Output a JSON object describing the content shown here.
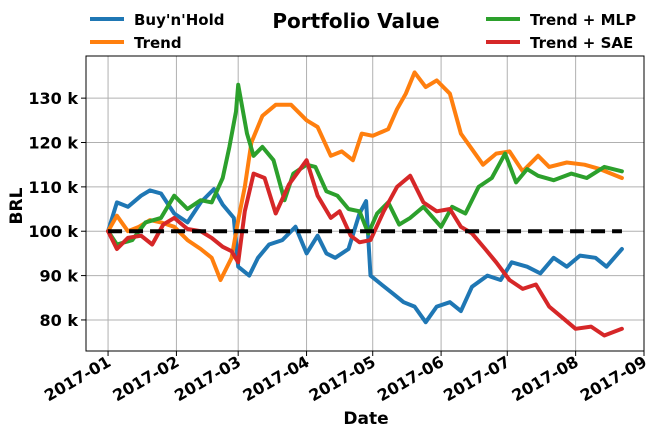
{
  "chart_data": {
    "type": "line",
    "title": "Portfolio Value",
    "xlabel": "Date",
    "ylabel": "BRL",
    "x_ticks": [
      {
        "date": "2017-01-01",
        "label": "2017-01"
      },
      {
        "date": "2017-02-01",
        "label": "2017-02"
      },
      {
        "date": "2017-03-01",
        "label": "2017-03"
      },
      {
        "date": "2017-04-01",
        "label": "2017-04"
      },
      {
        "date": "2017-05-01",
        "label": "2017-05"
      },
      {
        "date": "2017-06-01",
        "label": "2017-06"
      },
      {
        "date": "2017-07-01",
        "label": "2017-07"
      },
      {
        "date": "2017-08-01",
        "label": "2017-08"
      },
      {
        "date": "2017-09-01",
        "label": "2017-09"
      }
    ],
    "y_ticks": [
      {
        "value": 80000,
        "label": "80 k"
      },
      {
        "value": 90000,
        "label": "90 k"
      },
      {
        "value": 100000,
        "label": "100 k"
      },
      {
        "value": 110000,
        "label": "110 k"
      },
      {
        "value": 120000,
        "label": "120 k"
      },
      {
        "value": 130000,
        "label": "130 k"
      }
    ],
    "xlim": [
      "2016-12-22",
      "2017-09-01"
    ],
    "ylim": [
      73000,
      139500
    ],
    "grid": true,
    "legend_position": "top, outside plot",
    "baseline": {
      "value": 100000,
      "from": "2017-01-01",
      "to": "2017-08-22",
      "color": "#000000",
      "style": "dashed"
    },
    "series": [
      {
        "name": "Buy'n'Hold",
        "color": "#1f77b4",
        "points": [
          [
            "2017-01-01",
            100000
          ],
          [
            "2017-01-05",
            106500
          ],
          [
            "2017-01-10",
            105500
          ],
          [
            "2017-01-16",
            108000
          ],
          [
            "2017-01-20",
            109200
          ],
          [
            "2017-01-25",
            108500
          ],
          [
            "2017-01-31",
            104000
          ],
          [
            "2017-02-06",
            102000
          ],
          [
            "2017-02-12",
            106500
          ],
          [
            "2017-02-18",
            109500
          ],
          [
            "2017-02-22",
            106000
          ],
          [
            "2017-02-27",
            103000
          ],
          [
            "2017-03-01",
            92000
          ],
          [
            "2017-03-06",
            90000
          ],
          [
            "2017-03-10",
            94000
          ],
          [
            "2017-03-15",
            97000
          ],
          [
            "2017-03-21",
            98000
          ],
          [
            "2017-03-27",
            101000
          ],
          [
            "2017-04-01",
            95000
          ],
          [
            "2017-04-06",
            99000
          ],
          [
            "2017-04-10",
            95000
          ],
          [
            "2017-04-14",
            94000
          ],
          [
            "2017-04-20",
            96000
          ],
          [
            "2017-04-25",
            104000
          ],
          [
            "2017-04-28",
            106800
          ],
          [
            "2017-04-30",
            90000
          ],
          [
            "2017-05-05",
            88000
          ],
          [
            "2017-05-10",
            86000
          ],
          [
            "2017-05-15",
            84000
          ],
          [
            "2017-05-20",
            83000
          ],
          [
            "2017-05-25",
            79500
          ],
          [
            "2017-05-30",
            83000
          ],
          [
            "2017-06-05",
            84000
          ],
          [
            "2017-06-10",
            82000
          ],
          [
            "2017-06-15",
            87500
          ],
          [
            "2017-06-22",
            90000
          ],
          [
            "2017-06-28",
            89000
          ],
          [
            "2017-07-03",
            93000
          ],
          [
            "2017-07-10",
            92000
          ],
          [
            "2017-07-16",
            90500
          ],
          [
            "2017-07-22",
            94000
          ],
          [
            "2017-07-28",
            92000
          ],
          [
            "2017-08-03",
            94500
          ],
          [
            "2017-08-10",
            94000
          ],
          [
            "2017-08-15",
            92000
          ],
          [
            "2017-08-22",
            96000
          ]
        ]
      },
      {
        "name": "Trend",
        "color": "#ff7f0e",
        "points": [
          [
            "2017-01-01",
            100000
          ],
          [
            "2017-01-05",
            103500
          ],
          [
            "2017-01-10",
            100000
          ],
          [
            "2017-01-15",
            101000
          ],
          [
            "2017-01-20",
            102500
          ],
          [
            "2017-01-25",
            102000
          ],
          [
            "2017-01-31",
            101000
          ],
          [
            "2017-02-06",
            98000
          ],
          [
            "2017-02-12",
            96000
          ],
          [
            "2017-02-17",
            94000
          ],
          [
            "2017-02-21",
            89000
          ],
          [
            "2017-02-26",
            94000
          ],
          [
            "2017-03-01",
            102500
          ],
          [
            "2017-03-04",
            110000
          ],
          [
            "2017-03-07",
            120000
          ],
          [
            "2017-03-12",
            126000
          ],
          [
            "2017-03-18",
            128500
          ],
          [
            "2017-03-25",
            128500
          ],
          [
            "2017-04-01",
            125000
          ],
          [
            "2017-04-06",
            123500
          ],
          [
            "2017-04-12",
            117000
          ],
          [
            "2017-04-17",
            118000
          ],
          [
            "2017-04-22",
            116000
          ],
          [
            "2017-04-26",
            122000
          ],
          [
            "2017-05-01",
            121500
          ],
          [
            "2017-05-08",
            123000
          ],
          [
            "2017-05-12",
            127500
          ],
          [
            "2017-05-16",
            131000
          ],
          [
            "2017-05-20",
            135800
          ],
          [
            "2017-05-25",
            132500
          ],
          [
            "2017-05-30",
            134000
          ],
          [
            "2017-06-05",
            131000
          ],
          [
            "2017-06-10",
            122000
          ],
          [
            "2017-06-15",
            118500
          ],
          [
            "2017-06-20",
            115000
          ],
          [
            "2017-06-26",
            117500
          ],
          [
            "2017-07-02",
            118000
          ],
          [
            "2017-07-08",
            113500
          ],
          [
            "2017-07-15",
            117000
          ],
          [
            "2017-07-20",
            114500
          ],
          [
            "2017-07-28",
            115500
          ],
          [
            "2017-08-05",
            115000
          ],
          [
            "2017-08-12",
            114000
          ],
          [
            "2017-08-22",
            112000
          ]
        ]
      },
      {
        "name": "Trend + MLP",
        "color": "#2ca02c",
        "points": [
          [
            "2017-01-01",
            100000
          ],
          [
            "2017-01-05",
            97000
          ],
          [
            "2017-01-12",
            98000
          ],
          [
            "2017-01-18",
            102000
          ],
          [
            "2017-01-25",
            103000
          ],
          [
            "2017-01-31",
            108000
          ],
          [
            "2017-02-06",
            105000
          ],
          [
            "2017-02-12",
            107000
          ],
          [
            "2017-02-17",
            106500
          ],
          [
            "2017-02-22",
            112000
          ],
          [
            "2017-02-25",
            119000
          ],
          [
            "2017-02-28",
            127000
          ],
          [
            "2017-03-01",
            133000
          ],
          [
            "2017-03-05",
            122000
          ],
          [
            "2017-03-08",
            117000
          ],
          [
            "2017-03-12",
            119000
          ],
          [
            "2017-03-17",
            116000
          ],
          [
            "2017-03-22",
            107000
          ],
          [
            "2017-03-26",
            113000
          ],
          [
            "2017-04-01",
            115000
          ],
          [
            "2017-04-05",
            114500
          ],
          [
            "2017-04-10",
            109000
          ],
          [
            "2017-04-15",
            108000
          ],
          [
            "2017-04-20",
            105000
          ],
          [
            "2017-04-25",
            104500
          ],
          [
            "2017-04-29",
            99500
          ],
          [
            "2017-05-03",
            104000
          ],
          [
            "2017-05-08",
            106500
          ],
          [
            "2017-05-13",
            101500
          ],
          [
            "2017-05-18",
            103000
          ],
          [
            "2017-05-24",
            105500
          ],
          [
            "2017-06-01",
            101000
          ],
          [
            "2017-06-06",
            105500
          ],
          [
            "2017-06-12",
            104000
          ],
          [
            "2017-06-18",
            110000
          ],
          [
            "2017-06-24",
            112000
          ],
          [
            "2017-06-30",
            117500
          ],
          [
            "2017-07-05",
            111000
          ],
          [
            "2017-07-10",
            114000
          ],
          [
            "2017-07-15",
            112500
          ],
          [
            "2017-07-22",
            111500
          ],
          [
            "2017-07-30",
            113000
          ],
          [
            "2017-08-06",
            112000
          ],
          [
            "2017-08-14",
            114500
          ],
          [
            "2017-08-22",
            113500
          ]
        ]
      },
      {
        "name": "Trend + SAE",
        "color": "#d62728",
        "points": [
          [
            "2017-01-01",
            100000
          ],
          [
            "2017-01-05",
            96000
          ],
          [
            "2017-01-10",
            98500
          ],
          [
            "2017-01-16",
            99000
          ],
          [
            "2017-01-21",
            97000
          ],
          [
            "2017-01-26",
            101500
          ],
          [
            "2017-01-31",
            103000
          ],
          [
            "2017-02-06",
            100500
          ],
          [
            "2017-02-12",
            100000
          ],
          [
            "2017-02-17",
            98500
          ],
          [
            "2017-02-22",
            96500
          ],
          [
            "2017-02-26",
            95500
          ],
          [
            "2017-03-01",
            93000
          ],
          [
            "2017-03-04",
            104500
          ],
          [
            "2017-03-08",
            113000
          ],
          [
            "2017-03-13",
            112000
          ],
          [
            "2017-03-18",
            104000
          ],
          [
            "2017-03-24",
            110500
          ],
          [
            "2017-04-01",
            116000
          ],
          [
            "2017-04-06",
            108000
          ],
          [
            "2017-04-12",
            103000
          ],
          [
            "2017-04-16",
            104500
          ],
          [
            "2017-04-21",
            99000
          ],
          [
            "2017-04-25",
            97500
          ],
          [
            "2017-04-30",
            98000
          ],
          [
            "2017-05-06",
            104500
          ],
          [
            "2017-05-12",
            110000
          ],
          [
            "2017-05-18",
            112500
          ],
          [
            "2017-05-24",
            106500
          ],
          [
            "2017-05-30",
            104500
          ],
          [
            "2017-06-05",
            105000
          ],
          [
            "2017-06-10",
            101000
          ],
          [
            "2017-06-15",
            99500
          ],
          [
            "2017-06-21",
            96000
          ],
          [
            "2017-06-26",
            93000
          ],
          [
            "2017-07-02",
            89000
          ],
          [
            "2017-07-08",
            87000
          ],
          [
            "2017-07-14",
            88000
          ],
          [
            "2017-07-20",
            83000
          ],
          [
            "2017-07-26",
            80500
          ],
          [
            "2017-08-01",
            78000
          ],
          [
            "2017-08-08",
            78500
          ],
          [
            "2017-08-14",
            76500
          ],
          [
            "2017-08-22",
            78000
          ]
        ]
      }
    ]
  }
}
